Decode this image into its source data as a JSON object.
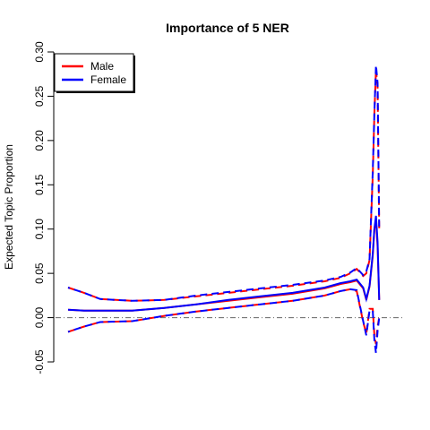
{
  "chart_data": {
    "type": "line",
    "title": "Importance of 5 NER",
    "ylabel": "Expected Topic Proportion",
    "xlabel": "",
    "ylim": [
      -0.05,
      0.3
    ],
    "yticks": [
      "-0.05",
      "0.00",
      "0.05",
      "0.10",
      "0.15",
      "0.20",
      "0.25",
      "0.30"
    ],
    "ytick_values": [
      -0.05,
      0.0,
      0.05,
      0.1,
      0.15,
      0.2,
      0.25,
      0.3
    ],
    "xlim": [
      0,
      100
    ],
    "reference_line": 0,
    "legend": {
      "position": "top-left",
      "entries": [
        {
          "label": "Male",
          "color": "#ff0000"
        },
        {
          "label": "Female",
          "color": "#0000ff"
        }
      ]
    },
    "series": [
      {
        "name": "Male",
        "color": "#ff0000",
        "x": [
          0,
          5,
          10,
          20,
          30,
          40,
          50,
          60,
          70,
          80,
          85,
          88,
          90,
          92,
          93,
          94,
          95,
          95.5,
          96,
          96.5,
          97
        ],
        "mean": [
          0.009,
          0.008,
          0.008,
          0.008,
          0.011,
          0.015,
          0.019,
          0.023,
          0.027,
          0.033,
          0.038,
          0.04,
          0.042,
          0.033,
          0.02,
          0.035,
          0.07,
          0.1,
          0.11,
          0.08,
          0.02
        ],
        "upper": [
          0.034,
          0.028,
          0.021,
          0.019,
          0.02,
          0.024,
          0.028,
          0.032,
          0.036,
          0.041,
          0.045,
          0.05,
          0.055,
          0.047,
          0.05,
          0.065,
          0.16,
          0.23,
          0.28,
          0.26,
          0.1
        ],
        "lower": [
          -0.016,
          -0.01,
          -0.005,
          -0.004,
          0.002,
          0.007,
          0.011,
          0.015,
          0.019,
          0.025,
          0.03,
          0.032,
          0.03,
          -0.005,
          -0.018,
          0.01,
          0.01,
          -0.02,
          -0.03,
          -0.01,
          0.0
        ]
      },
      {
        "name": "Female",
        "color": "#0000ff",
        "x": [
          0,
          5,
          10,
          20,
          30,
          40,
          50,
          60,
          70,
          80,
          85,
          88,
          90,
          92,
          93,
          94,
          95,
          95.5,
          96,
          96.5,
          97
        ],
        "mean": [
          0.009,
          0.008,
          0.008,
          0.008,
          0.011,
          0.015,
          0.02,
          0.024,
          0.028,
          0.034,
          0.039,
          0.041,
          0.043,
          0.034,
          0.021,
          0.036,
          0.072,
          0.1,
          0.115,
          0.085,
          0.02
        ],
        "upper": [
          0.034,
          0.028,
          0.021,
          0.019,
          0.02,
          0.025,
          0.029,
          0.033,
          0.037,
          0.042,
          0.046,
          0.051,
          0.056,
          0.048,
          0.052,
          0.066,
          0.165,
          0.23,
          0.285,
          0.265,
          0.1
        ],
        "lower": [
          -0.016,
          -0.01,
          -0.005,
          -0.004,
          0.002,
          0.007,
          0.011,
          0.015,
          0.019,
          0.025,
          0.03,
          0.032,
          0.031,
          -0.004,
          -0.02,
          0.008,
          0.008,
          -0.025,
          -0.04,
          -0.015,
          0.0
        ]
      }
    ]
  }
}
